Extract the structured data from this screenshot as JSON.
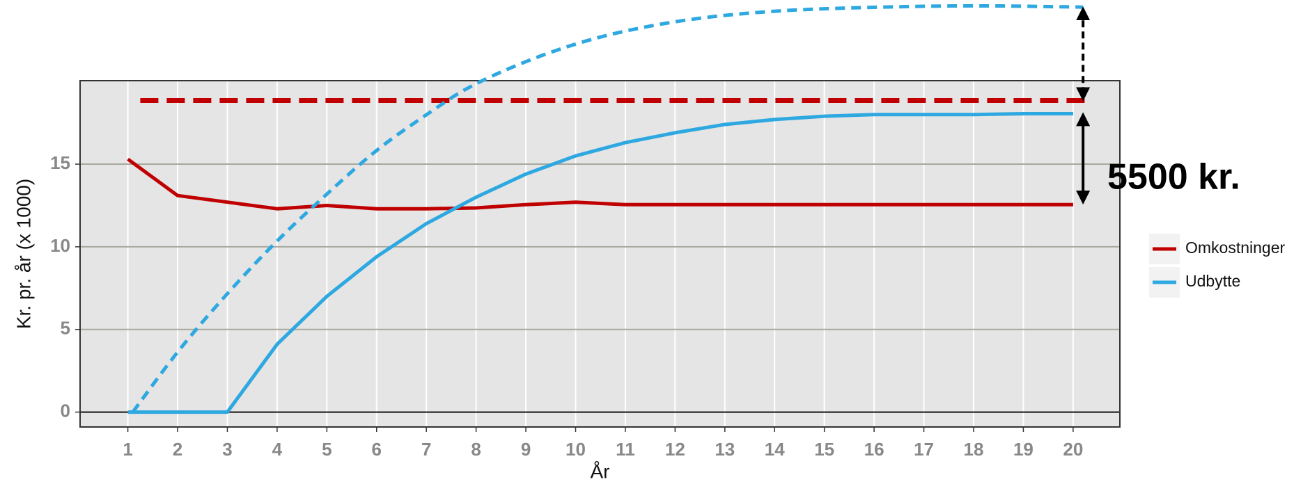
{
  "chart_data": {
    "type": "line",
    "xlabel": "År",
    "ylabel": "Kr. pr. år (x 1000)",
    "annotation": "5500 kr.",
    "x": [
      1,
      2,
      3,
      4,
      5,
      6,
      7,
      8,
      9,
      10,
      11,
      12,
      13,
      14,
      15,
      16,
      17,
      18,
      19,
      20
    ],
    "series": [
      {
        "name": "Omkostninger",
        "color": "#c00000",
        "values": [
          15.3,
          13.1,
          12.7,
          12.3,
          12.5,
          12.3,
          12.3,
          12.35,
          12.55,
          12.7,
          12.55,
          12.55,
          12.55,
          12.55,
          12.55,
          12.55,
          12.55,
          12.55,
          12.55,
          12.55
        ]
      },
      {
        "name": "Udbytte",
        "color": "#2ea8e0",
        "values": [
          0,
          0,
          0,
          4.1,
          7.0,
          9.4,
          11.4,
          13.0,
          14.4,
          15.5,
          16.3,
          16.9,
          17.4,
          17.7,
          17.9,
          18.0,
          18.0,
          18.0,
          18.05,
          18.05
        ]
      }
    ],
    "overlays": [
      {
        "color": "#c00000",
        "x": [
          1.25,
          20.3
        ],
        "values": [
          18.85,
          18.85
        ]
      },
      {
        "color": "#2ea8e0",
        "x": [
          1.1,
          2,
          3,
          4,
          5,
          6,
          7,
          8,
          10,
          12,
          14,
          16,
          18,
          20.2
        ],
        "values": [
          0,
          3.7,
          7.2,
          10.4,
          13.2,
          15.9,
          18.0,
          20.0,
          22.4,
          23.7,
          24.3,
          24.5,
          24.6,
          24.5
        ]
      }
    ],
    "arrows": [
      {
        "x": 20.2,
        "from": 24.5,
        "to": 18.85,
        "dashed": true
      },
      {
        "x": 20.2,
        "from": 18.1,
        "to": 12.6,
        "dashed": false
      }
    ],
    "xlim": [
      0.04,
      20.94
    ],
    "ylim": [
      -0.9,
      20.05
    ],
    "xticks": [
      1,
      2,
      3,
      4,
      5,
      6,
      7,
      8,
      9,
      10,
      11,
      12,
      13,
      14,
      15,
      16,
      17,
      18,
      19,
      20
    ],
    "yticks": [
      0,
      5,
      10,
      15
    ],
    "grid": true
  }
}
